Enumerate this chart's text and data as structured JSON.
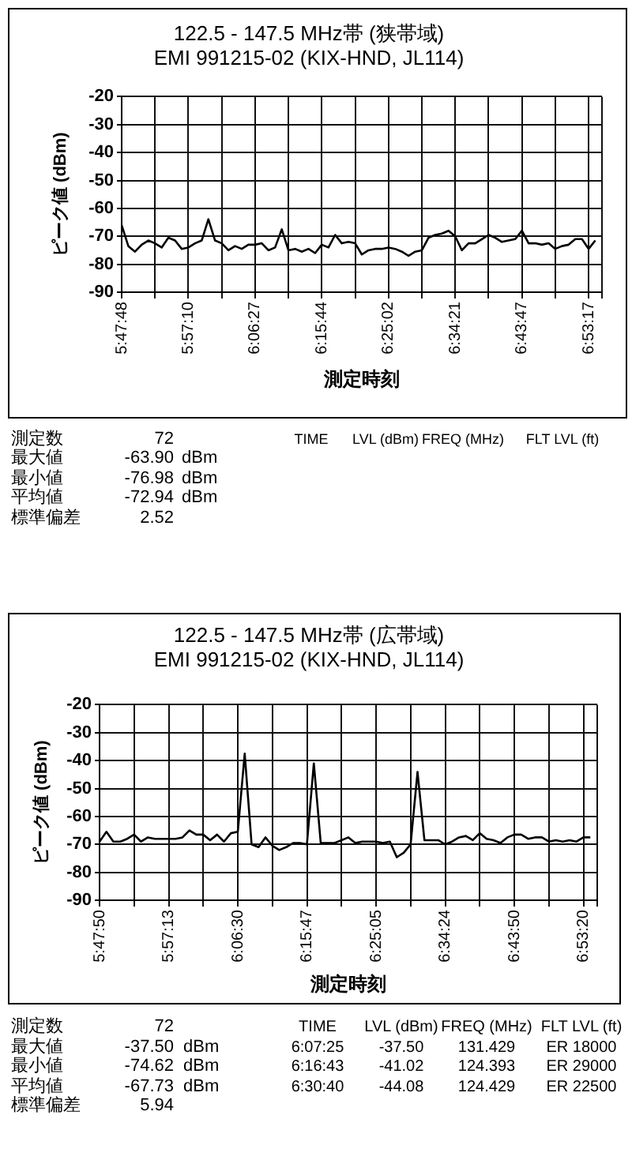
{
  "chart_data": [
    {
      "type": "line",
      "title": "122.5 - 147.5 MHz帯 (狭帯域)",
      "subtitle": "EMI 991215-02 (KIX-HND, JL114)",
      "xlabel": "測定時刻",
      "ylabel": "ピーク値 (dBm)",
      "categories": [
        "5:47:48",
        null,
        null,
        null,
        null,
        null,
        null,
        null,
        null,
        null,
        "5:57:10",
        null,
        null,
        null,
        null,
        null,
        null,
        null,
        null,
        null,
        "6:06:27",
        null,
        null,
        null,
        null,
        null,
        null,
        null,
        null,
        null,
        "6:15:44",
        null,
        null,
        null,
        null,
        null,
        null,
        null,
        null,
        null,
        "6:25:02",
        null,
        null,
        null,
        null,
        null,
        null,
        null,
        null,
        null,
        "6:34:21",
        null,
        null,
        null,
        null,
        null,
        null,
        null,
        null,
        null,
        "6:43:47",
        null,
        null,
        null,
        null,
        null,
        null,
        null,
        null,
        null,
        "6:53:17",
        null
      ],
      "values": [
        -66,
        -73.5,
        -75.5,
        -73,
        -71.5,
        -72.5,
        -74,
        -70.5,
        -71.5,
        -74.5,
        -74,
        -72.5,
        -71.5,
        -63.9,
        -71.5,
        -72.5,
        -75,
        -73.5,
        -74.5,
        -73,
        -73,
        -72.5,
        -75,
        -74,
        -67.5,
        -75,
        -74.5,
        -75.5,
        -74.5,
        -76,
        -73,
        -74,
        -69.5,
        -72.5,
        -72,
        -72.5,
        -76.5,
        -75,
        -74.5,
        -74.5,
        -74,
        -74.5,
        -75.5,
        -77,
        -75.5,
        -75,
        -70.5,
        -69.5,
        -69,
        -68,
        -70,
        -75,
        -72.5,
        -72.5,
        -71,
        -69.5,
        -70.5,
        -72,
        -71.5,
        -71,
        -68,
        -72.5,
        -72.5,
        -73,
        -72.5,
        -74.5,
        -73.5,
        -73,
        -71,
        -71,
        -74.5,
        -71.5
      ],
      "color": "#000000",
      "ylim": [
        -90,
        -20
      ],
      "yticks": [
        -90,
        -80,
        -70,
        -60,
        -50,
        -40,
        -30,
        -20
      ],
      "grid": true,
      "annotations": [
        "測定数  72",
        "最大値  -63.90  dBm",
        "最小値  -76.98  dBm",
        "平均値  -72.94  dBm",
        "標準偏差  2.52",
        "TIME  LVL (dBm)  FREQ (MHz)  FLT LVL (ft)"
      ]
    },
    {
      "type": "line",
      "title": "122.5 - 147.5 MHz帯 (広帯域)",
      "subtitle": "EMI 991215-02 (KIX-HND, JL114)",
      "xlabel": "測定時刻",
      "ylabel": "ピーク値 (dBm)",
      "categories": [
        "5:47:50",
        null,
        null,
        null,
        null,
        null,
        null,
        null,
        null,
        null,
        "5:57:13",
        null,
        null,
        null,
        null,
        null,
        null,
        null,
        null,
        null,
        "6:06:30",
        null,
        null,
        null,
        null,
        null,
        null,
        null,
        null,
        null,
        "6:15:47",
        null,
        null,
        null,
        null,
        null,
        null,
        null,
        null,
        null,
        "6:25:05",
        null,
        null,
        null,
        null,
        null,
        null,
        null,
        null,
        null,
        "6:34:24",
        null,
        null,
        null,
        null,
        null,
        null,
        null,
        null,
        null,
        "6:43:50",
        null,
        null,
        null,
        null,
        null,
        null,
        null,
        null,
        null,
        "6:53:20",
        null
      ],
      "values": [
        -69,
        -65.5,
        -69,
        -69,
        -68,
        -66.5,
        -69,
        -67.5,
        -68,
        -68,
        -68,
        -68,
        -67.5,
        -65,
        -66.5,
        -66.5,
        -68.5,
        -66.5,
        -69,
        -66,
        -65.5,
        -37.5,
        -70,
        -71,
        -67.5,
        -70.5,
        -72,
        -71,
        -69.5,
        -69.5,
        -70,
        -41,
        -69.5,
        -69.5,
        -69.5,
        -68.5,
        -67.5,
        -69.5,
        -69,
        -69,
        -69,
        -69.5,
        -69,
        -74.6,
        -73,
        -70,
        -44.1,
        -68.5,
        -68.5,
        -68.5,
        -70,
        -69,
        -67.5,
        -67,
        -68.5,
        -66,
        -68,
        -68.5,
        -69.5,
        -67.5,
        -66.5,
        -66.5,
        -68,
        -67.5,
        -67.5,
        -69,
        -68.5,
        -69,
        -68.5,
        -69,
        -67.5,
        -67.5
      ],
      "color": "#000000",
      "ylim": [
        -90,
        -20
      ],
      "yticks": [
        -90,
        -80,
        -70,
        -60,
        -50,
        -40,
        -30,
        -20
      ],
      "grid": true,
      "annotations": [
        "測定数  72",
        "最大値  -37.50  dBm",
        "最小値  -74.62  dBm",
        "平均値  -67.73  dBm",
        "標準偏差  5.94",
        "TIME  LVL (dBm)  FREQ (MHz)  FLT LVL (ft)",
        "6:07:25  -37.50  131.429  ER 18000",
        "6:16:43  -41.02  124.393  ER 29000",
        "6:30:40  -44.08  124.429  ER 22500"
      ]
    }
  ]
}
